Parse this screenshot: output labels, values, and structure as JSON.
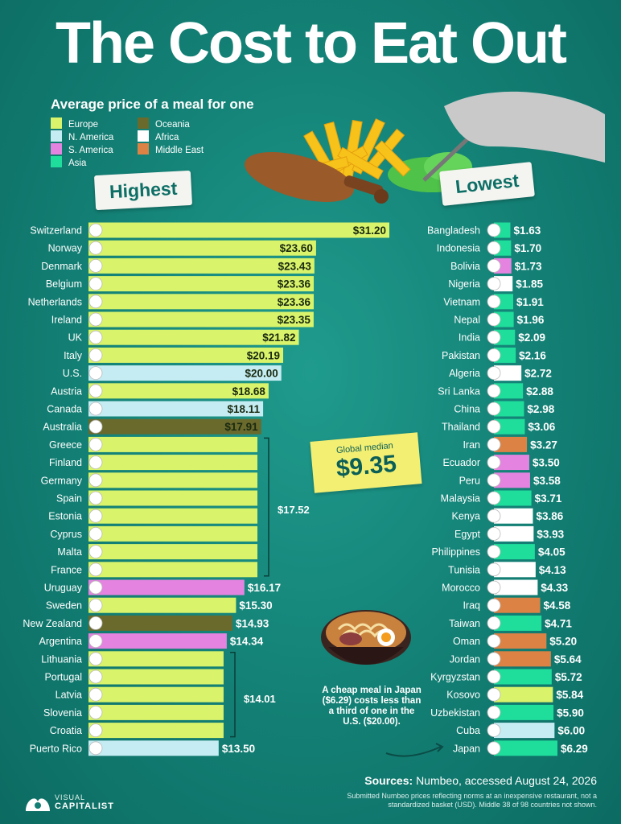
{
  "title": "The Cost to Eat Out",
  "subtitle": "Average price of a meal for one",
  "colors": {
    "Europe": "#d9f36b",
    "N. America": "#c5ecf3",
    "S. America": "#e484e0",
    "Asia": "#1fdd9b",
    "Oceania": "#6a6a2d",
    "Africa": "#ffffff",
    "Middle East": "#dd8245"
  },
  "legend": [
    {
      "label": "Europe",
      "region": "Europe"
    },
    {
      "label": "N. America",
      "region": "N. America"
    },
    {
      "label": "S. America",
      "region": "S. America"
    },
    {
      "label": "Asia",
      "region": "Asia"
    },
    {
      "label": "Oceania",
      "region": "Oceania"
    },
    {
      "label": "Africa",
      "region": "Africa"
    },
    {
      "label": "Middle East",
      "region": "Middle East"
    }
  ],
  "highest_label": "Highest",
  "lowest_label": "Lowest",
  "median_label": "Global median",
  "median_value": "$9.35",
  "group_labels": {
    "g1": "$17.52",
    "g2": "$14.01"
  },
  "note": "A cheap meal in Japan ($6.29) costs less than a third of one in the U.S. ($20.00).",
  "sources_label": "Sources:",
  "sources_text": "Numbeo, accessed August 24, 2026",
  "footnote": "Submitted Numbeo prices reflecting norms at an inexpensive restaurant, not a standardized basket (USD). Middle 38 of 98 countries not shown.",
  "brand_top": "VISUAL",
  "brand_bottom": "CAPITALIST",
  "chart_data": [
    {
      "type": "bar",
      "title": "Highest",
      "categories": [
        "Switzerland",
        "Norway",
        "Denmark",
        "Belgium",
        "Netherlands",
        "Ireland",
        "UK",
        "Italy",
        "U.S.",
        "Austria",
        "Canada",
        "Australia",
        "Greece",
        "Finland",
        "Germany",
        "Spain",
        "Estonia",
        "Cyprus",
        "Malta",
        "France",
        "Uruguay",
        "Sweden",
        "New Zealand",
        "Argentina",
        "Lithuania",
        "Portugal",
        "Latvia",
        "Slovenia",
        "Croatia",
        "Puerto Rico"
      ],
      "values": [
        31.2,
        23.6,
        23.43,
        23.36,
        23.36,
        23.35,
        21.82,
        20.19,
        20.0,
        18.68,
        18.11,
        17.91,
        17.52,
        17.52,
        17.52,
        17.52,
        17.52,
        17.52,
        17.52,
        17.52,
        16.17,
        15.3,
        14.93,
        14.34,
        14.01,
        14.01,
        14.01,
        14.01,
        14.01,
        13.5
      ],
      "labels": [
        "$31.20",
        "$23.60",
        "$23.43",
        "$23.36",
        "$23.36",
        "$23.35",
        "$21.82",
        "$20.19",
        "$20.00",
        "$18.68",
        "$18.11",
        "$17.91",
        "",
        "",
        "",
        "",
        "",
        "",
        "",
        "",
        "$16.17",
        "$15.30",
        "$14.93",
        "$14.34",
        "",
        "",
        "",
        "",
        "",
        "$13.50"
      ],
      "regions": [
        "Europe",
        "Europe",
        "Europe",
        "Europe",
        "Europe",
        "Europe",
        "Europe",
        "Europe",
        "N. America",
        "Europe",
        "N. America",
        "Oceania",
        "Europe",
        "Europe",
        "Europe",
        "Europe",
        "Europe",
        "Europe",
        "Europe",
        "Europe",
        "S. America",
        "Europe",
        "Oceania",
        "S. America",
        "Europe",
        "Europe",
        "Europe",
        "Europe",
        "Europe",
        "N. America"
      ]
    },
    {
      "type": "bar",
      "title": "Lowest",
      "categories": [
        "Bangladesh",
        "Indonesia",
        "Bolivia",
        "Nigeria",
        "Vietnam",
        "Nepal",
        "India",
        "Pakistan",
        "Algeria",
        "Sri Lanka",
        "China",
        "Thailand",
        "Iran",
        "Ecuador",
        "Peru",
        "Malaysia",
        "Kenya",
        "Egypt",
        "Philippines",
        "Tunisia",
        "Morocco",
        "Iraq",
        "Taiwan",
        "Oman",
        "Jordan",
        "Kyrgyzstan",
        "Kosovo",
        "Uzbekistan",
        "Cuba",
        "Japan"
      ],
      "values": [
        1.63,
        1.7,
        1.73,
        1.85,
        1.91,
        1.96,
        2.09,
        2.16,
        2.72,
        2.88,
        2.98,
        3.06,
        3.27,
        3.5,
        3.58,
        3.71,
        3.86,
        3.93,
        4.05,
        4.13,
        4.33,
        4.58,
        4.71,
        5.2,
        5.64,
        5.72,
        5.84,
        5.9,
        6.0,
        6.29
      ],
      "labels": [
        "$1.63",
        "$1.70",
        "$1.73",
        "$1.85",
        "$1.91",
        "$1.96",
        "$2.09",
        "$2.16",
        "$2.72",
        "$2.88",
        "$2.98",
        "$3.06",
        "$3.27",
        "$3.50",
        "$3.58",
        "$3.71",
        "$3.86",
        "$3.93",
        "$4.05",
        "$4.13",
        "$4.33",
        "$4.58",
        "$4.71",
        "$5.20",
        "$5.64",
        "$5.72",
        "$5.84",
        "$5.90",
        "$6.00",
        "$6.29"
      ],
      "regions": [
        "Asia",
        "Asia",
        "S. America",
        "Africa",
        "Asia",
        "Asia",
        "Asia",
        "Asia",
        "Africa",
        "Asia",
        "Asia",
        "Asia",
        "Middle East",
        "S. America",
        "S. America",
        "Asia",
        "Africa",
        "Africa",
        "Asia",
        "Africa",
        "Africa",
        "Middle East",
        "Asia",
        "Middle East",
        "Middle East",
        "Asia",
        "Europe",
        "Asia",
        "N. America",
        "Asia"
      ]
    }
  ]
}
